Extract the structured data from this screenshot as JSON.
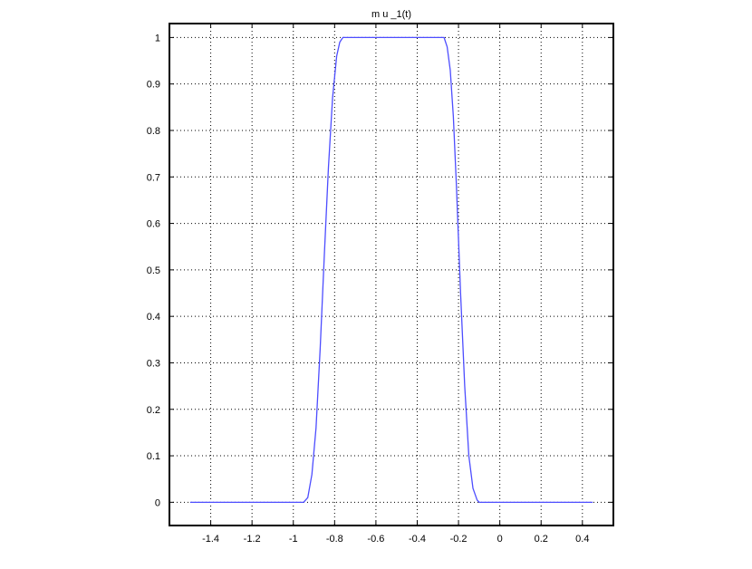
{
  "chart_data": {
    "type": "line",
    "title": "m u _1(t)",
    "xlabel": "",
    "ylabel": "",
    "xlim": [
      -1.6,
      0.55
    ],
    "ylim": [
      -0.05,
      1.03
    ],
    "grid": true,
    "legend": "none",
    "x_ticks": [
      -1.4,
      -1.2,
      -1,
      -0.8,
      -0.6,
      -0.4,
      -0.2,
      0,
      0.2,
      0.4
    ],
    "x_tick_labels": [
      "-1.4",
      "-1.2",
      "-1",
      "-0.8",
      "-0.6",
      "-0.4",
      "-0.2",
      "0",
      "0.2",
      "0.4"
    ],
    "y_ticks": [
      0,
      0.1,
      0.2,
      0.3,
      0.4,
      0.5,
      0.6,
      0.7,
      0.8,
      0.9,
      1
    ],
    "y_tick_labels": [
      "0",
      "0.1",
      "0.2",
      "0.3",
      "0.4",
      "0.5",
      "0.6",
      "0.7",
      "0.8",
      "0.9",
      "1"
    ],
    "series": [
      {
        "color": "#4d4dff",
        "x": [
          -1.5,
          -0.95,
          -0.93,
          -0.91,
          -0.89,
          -0.87,
          -0.85,
          -0.83,
          -0.81,
          -0.79,
          -0.775,
          -0.76,
          -0.75,
          -0.28,
          -0.27,
          -0.255,
          -0.24,
          -0.225,
          -0.21,
          -0.19,
          -0.17,
          -0.15,
          -0.13,
          -0.11,
          -0.1,
          0.45
        ],
        "y": [
          0,
          0,
          0.01,
          0.06,
          0.16,
          0.33,
          0.53,
          0.72,
          0.87,
          0.96,
          0.99,
          1.0,
          1.0,
          1.0,
          1.0,
          0.98,
          0.93,
          0.83,
          0.68,
          0.45,
          0.25,
          0.1,
          0.03,
          0.005,
          0,
          0
        ]
      }
    ]
  }
}
